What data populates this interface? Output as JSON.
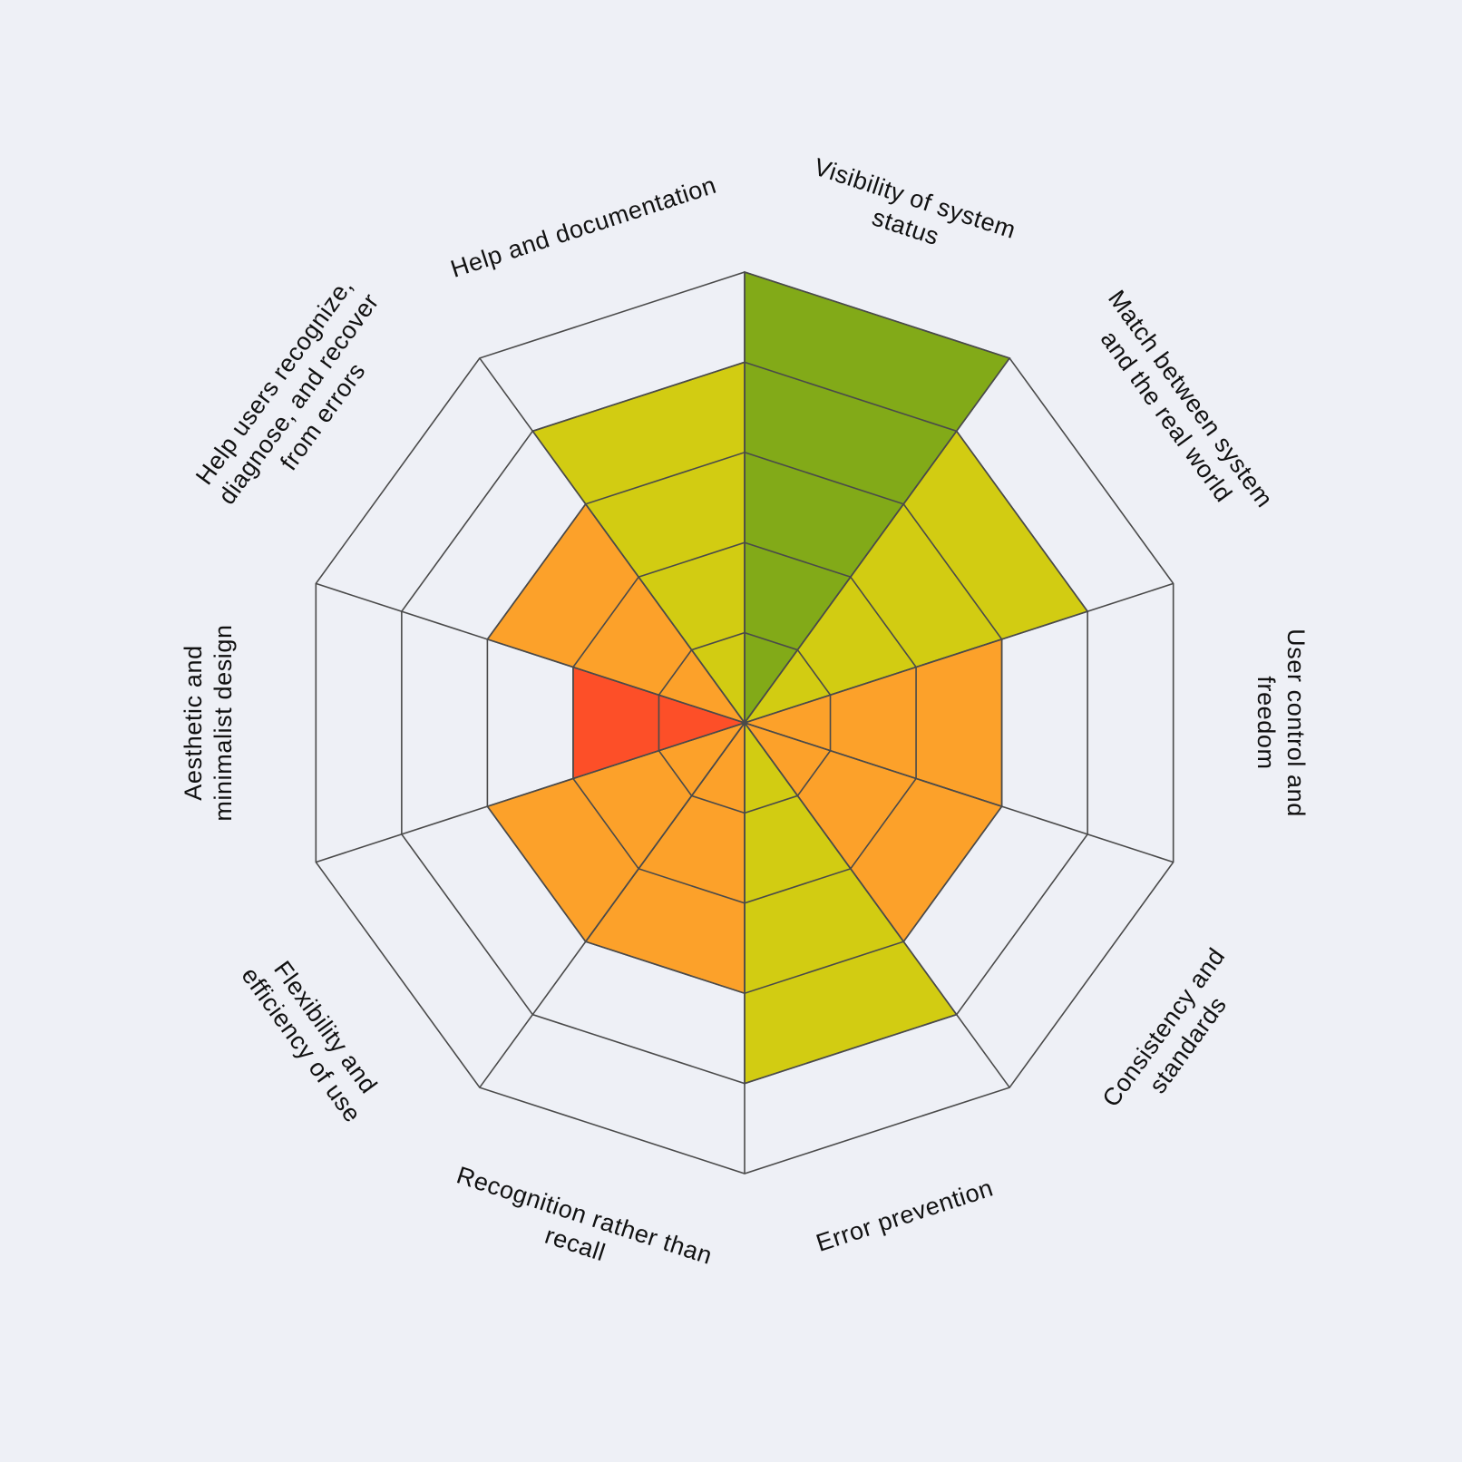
{
  "chart_data": {
    "type": "radar",
    "grid": true,
    "levels": 5,
    "range": [
      0,
      5
    ],
    "categories": [
      {
        "name": "Visibility of system status",
        "lines": [
          "Visibility of system",
          "status"
        ],
        "value": 5,
        "color": "#82AA18"
      },
      {
        "name": "Match between system and the real world",
        "lines": [
          "Match between system",
          "and the real world"
        ],
        "value": 4,
        "color": "#D2CC12"
      },
      {
        "name": "User control and freedom",
        "lines": [
          "User control and",
          "freedom"
        ],
        "value": 3,
        "color": "#FCA12A"
      },
      {
        "name": "Consistency and standards",
        "lines": [
          "Consistency and",
          "standards"
        ],
        "value": 3,
        "color": "#FCA12A"
      },
      {
        "name": "Error prevention",
        "lines": [
          "Error prevention"
        ],
        "value": 4,
        "color": "#D2CC12"
      },
      {
        "name": "Recognition rather than recall",
        "lines": [
          "Recognition rather than",
          "recall"
        ],
        "value": 3,
        "color": "#FCA12A"
      },
      {
        "name": "Flexibility and efficiency of use",
        "lines": [
          "Flexibility and",
          "efficiency of use"
        ],
        "value": 3,
        "color": "#FCA12A"
      },
      {
        "name": "Aesthetic and minimalist design",
        "lines": [
          "Aesthetic and",
          "minimalist design"
        ],
        "value": 2,
        "color": "#FD4F28"
      },
      {
        "name": "Help users recognize, diagnose, and recover from errors",
        "lines": [
          "Help users recognize,",
          "diagnose, and recover",
          "from errors"
        ],
        "value": 3,
        "color": "#FCA12A"
      },
      {
        "name": "Help and documentation",
        "lines": [
          "Help and documentation"
        ],
        "value": 4,
        "color": "#D2CC12"
      }
    ],
    "colors": {
      "background": "#EEF0F6",
      "grid": "#4a4a4a",
      "text": "#111111"
    }
  }
}
